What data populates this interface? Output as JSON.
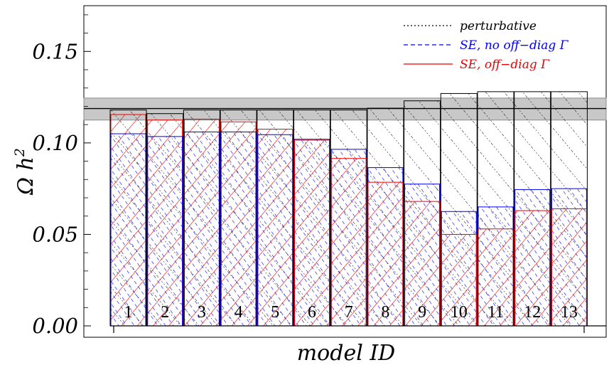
{
  "chart_data": {
    "type": "bar",
    "xlabel": "model ID",
    "ylabel": "Ω h",
    "ylabel_superscript": "2",
    "ylim": [
      0,
      0.175
    ],
    "yticks": [
      "0.00",
      "0.05",
      "0.10",
      "0.15"
    ],
    "ytick_values": [
      0,
      0.05,
      0.1,
      0.15
    ],
    "categories": [
      "1",
      "2",
      "3",
      "4",
      "5",
      "6",
      "7",
      "8",
      "9",
      "10",
      "11",
      "12",
      "13"
    ],
    "series": [
      {
        "name": "perturbative",
        "style": "dotted",
        "color": "#000000",
        "values": [
          0.118,
          0.116,
          0.118,
          0.118,
          0.118,
          0.118,
          0.118,
          0.119,
          0.123,
          0.127,
          0.128,
          0.128,
          0.128
        ]
      },
      {
        "name": "SE, no off−diag Γ",
        "style": "dashed",
        "color": "#0000ee",
        "values": [
          0.105,
          0.1035,
          0.106,
          0.106,
          0.1045,
          0.102,
          0.0965,
          0.0865,
          0.0775,
          0.0625,
          0.065,
          0.0745,
          0.075
        ]
      },
      {
        "name": "SE, off−diag Γ",
        "style": "solid",
        "color": "#ee0000",
        "values": [
          0.1155,
          0.1125,
          0.113,
          0.1115,
          0.1075,
          0.1015,
          0.0915,
          0.0785,
          0.068,
          0.05,
          0.053,
          0.063,
          0.064
        ]
      }
    ],
    "reference_band": {
      "center": 0.1188,
      "low": 0.1125,
      "high": 0.1245
    },
    "legend_position": "top-right",
    "grid": false
  }
}
